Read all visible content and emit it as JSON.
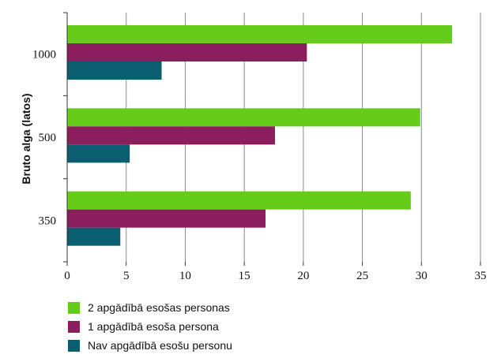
{
  "chart_data": {
    "type": "bar",
    "orientation": "horizontal",
    "title": "",
    "xlabel": "",
    "ylabel": "Bruto alga (latos)",
    "categories": [
      "1000",
      "500",
      "350"
    ],
    "series": [
      {
        "name": "2 apgādībā esošas personas",
        "color": "#66cc1a",
        "values": [
          32.6,
          29.9,
          29.1
        ]
      },
      {
        "name": "1 apgādībā esoša persona",
        "color": "#8b1f5e",
        "values": [
          20.3,
          17.6,
          16.8
        ]
      },
      {
        "name": "Nav apgādībā esošu personu",
        "color": "#0b5e70",
        "values": [
          8.0,
          5.3,
          4.5
        ]
      }
    ],
    "xlim": [
      0,
      35
    ],
    "xticks": [
      "0",
      "5",
      "10",
      "15",
      "20",
      "25",
      "30",
      "35"
    ],
    "grid": true,
    "legend_position": "bottom-left"
  }
}
